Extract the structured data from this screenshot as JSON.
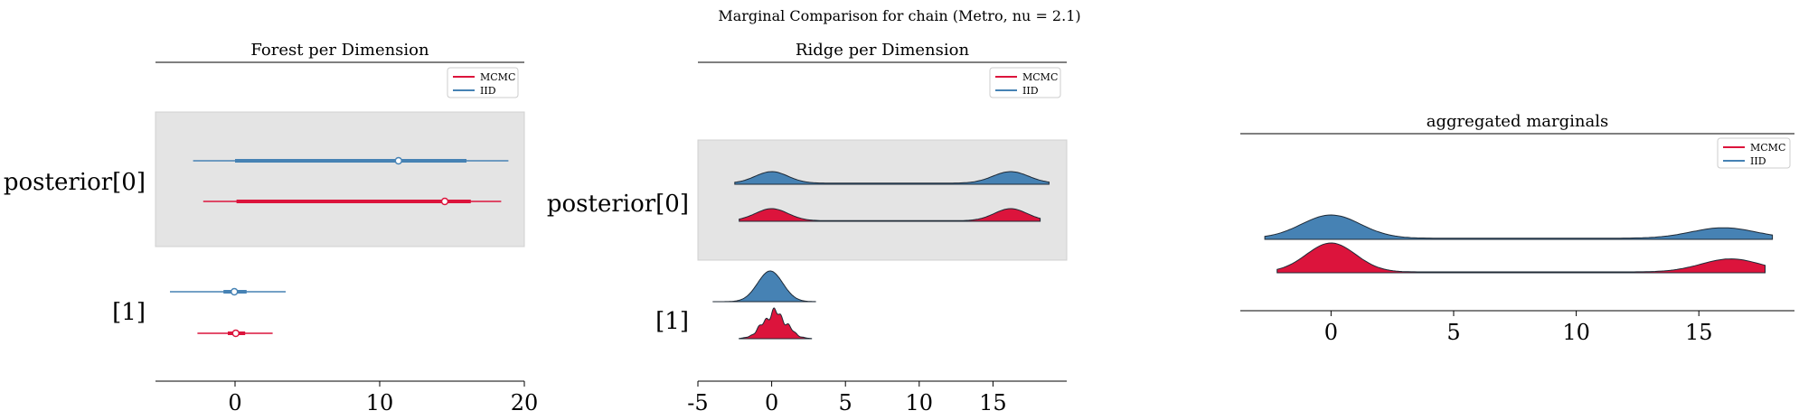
{
  "suptitle": "Marginal Comparison for chain (Metro, nu = 2.1)",
  "colors": {
    "mcmc": "#dc143c",
    "iid": "#4682b4",
    "band": "#e4e4e4",
    "axis": "#000000",
    "edge": "#1f2a36"
  },
  "legend": {
    "entries": [
      {
        "label": "MCMC",
        "color": "#dc143c"
      },
      {
        "label": "IID",
        "color": "#4682b4"
      }
    ],
    "placement": "upper right"
  },
  "chart_data": [
    {
      "type": "forest",
      "title": "Forest per Dimension",
      "xlim": [
        -5.5,
        20
      ],
      "xticks": [
        0,
        10,
        20
      ],
      "rows": [
        {
          "label": "posterior[0]",
          "shaded": true,
          "iid": {
            "hdi94": [
              -2.9,
              18.9
            ],
            "hdi50": [
              0.0,
              16.0
            ],
            "point": 11.3
          },
          "mcmc": {
            "hdi94": [
              -2.2,
              18.4
            ],
            "hdi50": [
              0.1,
              16.3
            ],
            "point": 14.5
          }
        },
        {
          "label": "[1]",
          "shaded": false,
          "iid": {
            "hdi94": [
              -4.5,
              3.5
            ],
            "hdi50": [
              -0.8,
              0.8
            ],
            "point": -0.05
          },
          "mcmc": {
            "hdi94": [
              -2.6,
              2.6
            ],
            "hdi50": [
              -0.5,
              0.7
            ],
            "point": 0.05
          }
        }
      ]
    },
    {
      "type": "ridge",
      "title": "Ridge per Dimension",
      "xlim": [
        -5,
        20
      ],
      "xticks": [
        -5,
        0,
        5,
        10,
        15
      ],
      "rows": [
        {
          "label": "posterior[0]",
          "shaded": true,
          "iid": {
            "range": [
              -2.5,
              18.8
            ],
            "peaks": [
              {
                "mu": 0,
                "sd": 1.1,
                "amp": 1.0
              },
              {
                "mu": 16.2,
                "sd": 1.2,
                "amp": 1.0
              }
            ],
            "floor": 0.1
          },
          "mcmc": {
            "range": [
              -2.2,
              18.2
            ],
            "peaks": [
              {
                "mu": 0,
                "sd": 1.1,
                "amp": 1.0
              },
              {
                "mu": 16.2,
                "sd": 1.1,
                "amp": 1.0
              }
            ],
            "floor": 0.05
          }
        },
        {
          "label": "[1]",
          "shaded": false,
          "iid": {
            "range": [
              -4,
              3.0
            ],
            "peaks": [
              {
                "mu": -0.1,
                "sd": 0.85,
                "amp": 1.0
              }
            ],
            "floor": 0.0
          },
          "mcmc": {
            "range": [
              -2.2,
              2.7
            ],
            "jagged": true,
            "peaks": [
              {
                "mu": 0.2,
                "sd": 0.8,
                "amp": 1.0
              }
            ],
            "floor": 0.0
          }
        }
      ]
    },
    {
      "type": "density",
      "title": "aggregated marginals",
      "xlim": [
        -3.7,
        18.9
      ],
      "xticks": [
        0,
        5,
        10,
        15
      ],
      "series": [
        {
          "name": "IID",
          "range": [
            -2.7,
            18.0
          ],
          "peaks": [
            {
              "mu": 0,
              "sd": 1.2,
              "amp": 1.0
            },
            {
              "mu": 16.0,
              "sd": 1.3,
              "amp": 0.45
            }
          ],
          "floor": 0.05
        },
        {
          "name": "MCMC",
          "range": [
            -2.2,
            17.7
          ],
          "peaks": [
            {
              "mu": 0,
              "sd": 1.0,
              "amp": 1.0
            },
            {
              "mu": 16.3,
              "sd": 1.2,
              "amp": 0.45
            }
          ],
          "floor": 0.03
        }
      ]
    }
  ]
}
